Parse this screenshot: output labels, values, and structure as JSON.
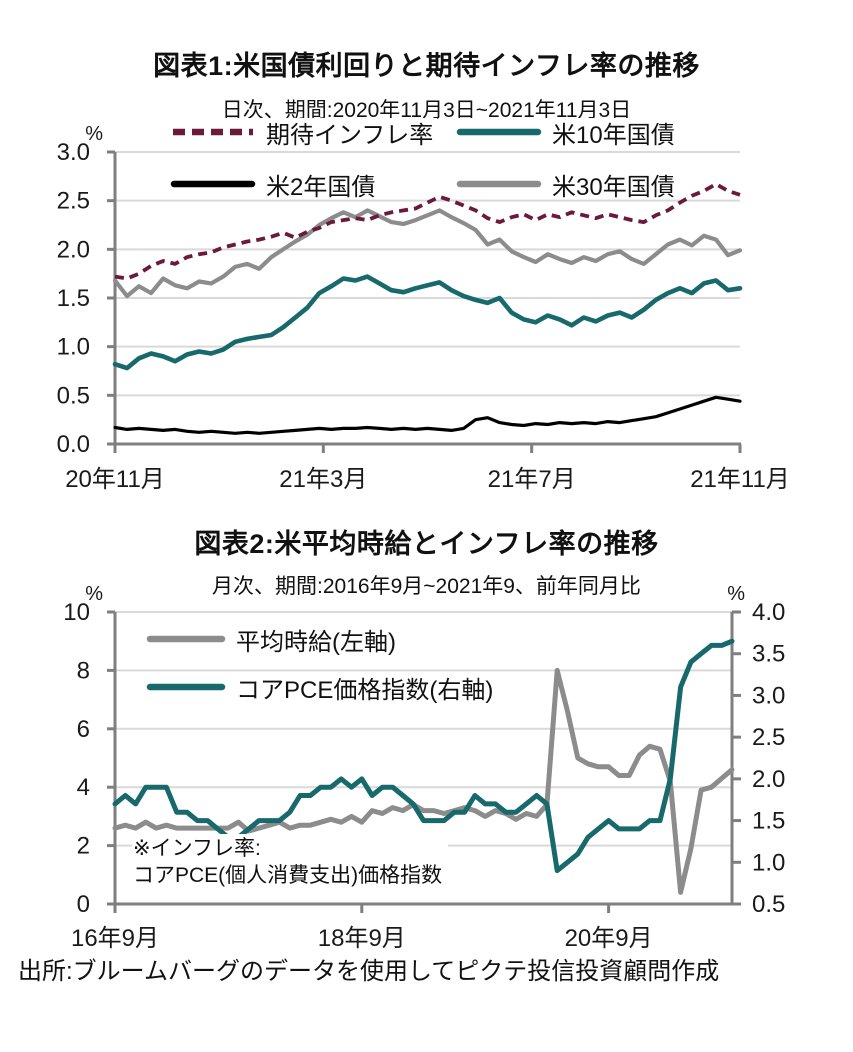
{
  "source_note": "出所:ブルームバーグのデータを使用してピクテ投信投資顧問作成",
  "colors": {
    "grid": "#d9d9d9",
    "axis": "#7f7f7f",
    "maroon": "#6b1a3c",
    "teal": "#17696c",
    "gray": "#8c8c8c",
    "black": "#000000"
  },
  "chart_data": [
    {
      "type": "line",
      "title": "図表1:米国債利回りと期待インフレ率の推移",
      "subtitle": "日次、期間:2020年11月3日~2021年11月3日",
      "x_axis": {
        "tick_labels": [
          "20年11月",
          "21年3月",
          "21年7月",
          "21年11月"
        ],
        "tick_positions": [
          0,
          0.3333,
          0.6667,
          1
        ]
      },
      "y_axis": {
        "unit": "%",
        "min": 0,
        "max": 3.0,
        "tick_values": [
          0,
          0.5,
          1.0,
          1.5,
          2.0,
          2.5,
          3.0
        ],
        "tick_labels": [
          "0.0",
          "0.5",
          "1.0",
          "1.5",
          "2.0",
          "2.5",
          "3.0"
        ]
      },
      "grid": true,
      "legend_position": "top",
      "series": [
        {
          "name": "期待インフレ率",
          "color": "#6b1a3c",
          "dashed": true,
          "axis": "left",
          "values": [
            1.72,
            1.7,
            1.75,
            1.83,
            1.88,
            1.85,
            1.92,
            1.95,
            1.97,
            2.02,
            2.05,
            2.08,
            2.1,
            2.13,
            2.17,
            2.12,
            2.18,
            2.22,
            2.28,
            2.3,
            2.32,
            2.3,
            2.35,
            2.38,
            2.4,
            2.42,
            2.48,
            2.54,
            2.5,
            2.45,
            2.4,
            2.32,
            2.28,
            2.33,
            2.36,
            2.3,
            2.36,
            2.33,
            2.38,
            2.35,
            2.32,
            2.36,
            2.33,
            2.3,
            2.28,
            2.35,
            2.4,
            2.48,
            2.55,
            2.6,
            2.67,
            2.6,
            2.56
          ]
        },
        {
          "name": "米10年国債",
          "color": "#17696c",
          "dashed": false,
          "axis": "left",
          "values": [
            0.82,
            0.78,
            0.88,
            0.93,
            0.9,
            0.85,
            0.92,
            0.95,
            0.93,
            0.97,
            1.05,
            1.08,
            1.1,
            1.12,
            1.2,
            1.3,
            1.4,
            1.55,
            1.62,
            1.7,
            1.68,
            1.72,
            1.65,
            1.58,
            1.56,
            1.6,
            1.63,
            1.66,
            1.58,
            1.52,
            1.48,
            1.45,
            1.5,
            1.35,
            1.28,
            1.25,
            1.32,
            1.28,
            1.22,
            1.3,
            1.26,
            1.32,
            1.35,
            1.3,
            1.38,
            1.48,
            1.55,
            1.6,
            1.55,
            1.65,
            1.68,
            1.58,
            1.6
          ]
        },
        {
          "name": "米2年国債",
          "color": "#000000",
          "dashed": false,
          "axis": "left",
          "values": [
            0.17,
            0.15,
            0.16,
            0.15,
            0.14,
            0.15,
            0.13,
            0.12,
            0.13,
            0.12,
            0.11,
            0.12,
            0.11,
            0.12,
            0.13,
            0.14,
            0.15,
            0.16,
            0.15,
            0.16,
            0.16,
            0.17,
            0.16,
            0.15,
            0.16,
            0.15,
            0.16,
            0.15,
            0.14,
            0.16,
            0.25,
            0.27,
            0.22,
            0.2,
            0.19,
            0.21,
            0.2,
            0.22,
            0.21,
            0.22,
            0.21,
            0.23,
            0.22,
            0.24,
            0.26,
            0.28,
            0.32,
            0.36,
            0.4,
            0.44,
            0.48,
            0.46,
            0.44
          ]
        },
        {
          "name": "米30年国債",
          "color": "#8c8c8c",
          "dashed": false,
          "axis": "left",
          "values": [
            1.68,
            1.52,
            1.62,
            1.55,
            1.7,
            1.63,
            1.6,
            1.67,
            1.65,
            1.72,
            1.82,
            1.85,
            1.8,
            1.92,
            2.0,
            2.08,
            2.15,
            2.25,
            2.32,
            2.38,
            2.33,
            2.4,
            2.34,
            2.28,
            2.26,
            2.3,
            2.35,
            2.4,
            2.33,
            2.27,
            2.2,
            2.05,
            2.1,
            1.98,
            1.92,
            1.87,
            1.95,
            1.9,
            1.86,
            1.92,
            1.88,
            1.95,
            1.98,
            1.9,
            1.85,
            1.95,
            2.05,
            2.1,
            2.04,
            2.14,
            2.1,
            1.94,
            1.99
          ]
        }
      ]
    },
    {
      "type": "line",
      "title": "図表2:米平均時給とインフレ率の推移",
      "subtitle": "月次、期間:2016年9月~2021年9、前年同月比",
      "x_axis": {
        "tick_labels": [
          "16年9月",
          "18年9月",
          "20年9月"
        ],
        "tick_positions": [
          0,
          0.4,
          0.8
        ]
      },
      "left_axis": {
        "unit": "%",
        "min": 0,
        "max": 10,
        "tick_values": [
          0,
          2,
          4,
          6,
          8,
          10
        ],
        "tick_labels": [
          "0",
          "2",
          "4",
          "6",
          "8",
          "10"
        ]
      },
      "right_axis": {
        "unit": "%",
        "min": 0.5,
        "max": 4.0,
        "tick_values": [
          0.5,
          1.0,
          1.5,
          2.0,
          2.5,
          3.0,
          3.5,
          4.0
        ],
        "tick_labels": [
          "0.5",
          "1.0",
          "1.5",
          "2.0",
          "2.5",
          "3.0",
          "3.5",
          "4.0"
        ]
      },
      "grid": true,
      "legend_position": "top-left-inside",
      "annotation": {
        "line1": "※インフレ率:",
        "line2": "コアPCE(個人消費支出)価格指数"
      },
      "series": [
        {
          "name": "平均時給(左軸)",
          "color": "#8c8c8c",
          "dashed": false,
          "axis": "left",
          "values": [
            2.6,
            2.7,
            2.6,
            2.8,
            2.6,
            2.7,
            2.6,
            2.6,
            2.6,
            2.6,
            2.6,
            2.6,
            2.8,
            2.5,
            2.6,
            2.7,
            2.8,
            2.6,
            2.7,
            2.7,
            2.8,
            2.9,
            2.8,
            3.0,
            2.8,
            3.2,
            3.1,
            3.3,
            3.2,
            3.4,
            3.2,
            3.2,
            3.1,
            3.2,
            3.3,
            3.2,
            3.0,
            3.2,
            3.1,
            2.9,
            3.1,
            3.0,
            3.4,
            8.0,
            6.6,
            5.0,
            4.8,
            4.7,
            4.7,
            4.4,
            4.4,
            5.1,
            5.4,
            5.3,
            4.2,
            0.4,
            1.9,
            3.9,
            4.0,
            4.3,
            4.6
          ]
        },
        {
          "name": "コアPCE価格指数(右軸)",
          "color": "#17696c",
          "dashed": false,
          "axis": "right",
          "values": [
            1.7,
            1.8,
            1.7,
            1.9,
            1.9,
            1.9,
            1.6,
            1.6,
            1.5,
            1.5,
            1.4,
            1.3,
            1.3,
            1.4,
            1.5,
            1.5,
            1.5,
            1.6,
            1.8,
            1.8,
            1.9,
            1.9,
            2.0,
            1.9,
            2.0,
            1.8,
            1.9,
            1.9,
            1.8,
            1.7,
            1.5,
            1.5,
            1.5,
            1.6,
            1.6,
            1.8,
            1.7,
            1.7,
            1.6,
            1.6,
            1.7,
            1.8,
            1.7,
            0.9,
            1.0,
            1.1,
            1.3,
            1.4,
            1.5,
            1.4,
            1.4,
            1.4,
            1.5,
            1.5,
            2.0,
            3.1,
            3.4,
            3.5,
            3.6,
            3.6,
            3.65
          ]
        }
      ]
    }
  ]
}
